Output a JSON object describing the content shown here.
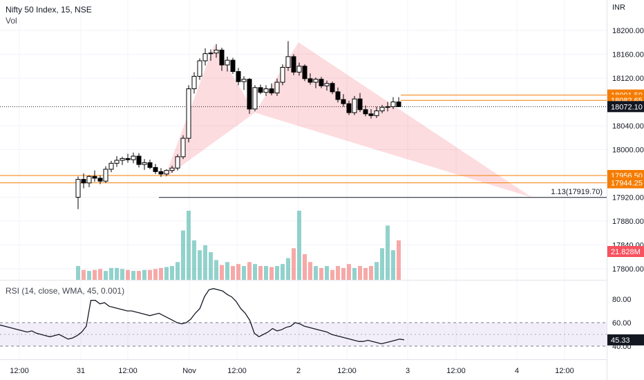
{
  "header": {
    "title": "Nifty 50 Index, 15, NSE",
    "volume_label": "Vol"
  },
  "rsi": {
    "label": "RSI (14, close, WMA, 45, 0.001)",
    "value_label": "45.33",
    "current": 45.33
  },
  "chart_data": [
    {
      "type": "candlestick",
      "title": "Nifty 50 Index, 15, NSE",
      "currency": "INR",
      "x_ticks": [
        "12:00",
        "31",
        "12:00",
        "Nov",
        "12:00",
        "2",
        "12:00",
        "3",
        "12:00",
        "4",
        "12:00"
      ],
      "y_ticks": [
        "18200.00",
        "18160.00",
        "18120.00",
        "18040.00",
        "18000.00",
        "17920.00",
        "17880.00",
        "17840.00",
        "17800.00"
      ],
      "ylim": [
        17780,
        18230
      ],
      "last_price_label": "18072.10",
      "price_lines": [
        {
          "value": 18091.5,
          "label": "18091.50"
        },
        {
          "value": 18082.65,
          "label": "18082.65"
        },
        {
          "value": 17956.5,
          "label": "17956.50"
        },
        {
          "value": 17944.25,
          "label": "17944.25"
        }
      ],
      "extension_label": "1.13(17919.70)",
      "extension_value": 17919.7,
      "volume_label": "21.828M",
      "harmonic_pattern": {
        "X": 17952,
        "A": 18176,
        "B": 18062,
        "C": 18180,
        "D": 17919.7
      },
      "candles": [
        [
          17920,
          17955,
          17900,
          17950
        ],
        [
          17950,
          17960,
          17935,
          17944
        ],
        [
          17944,
          17957,
          17937,
          17955
        ],
        [
          17955,
          17965,
          17946,
          17952
        ],
        [
          17952,
          17957,
          17942,
          17947
        ],
        [
          17947,
          17972,
          17944,
          17967
        ],
        [
          17967,
          17981,
          17962,
          17977
        ],
        [
          17977,
          17989,
          17971,
          17982
        ],
        [
          17982,
          17988,
          17974,
          17985
        ],
        [
          17985,
          17993,
          17978,
          17983
        ],
        [
          17983,
          17995,
          17977,
          17989
        ],
        [
          17989,
          17994,
          17970,
          17975
        ],
        [
          17975,
          17984,
          17966,
          17978
        ],
        [
          17978,
          17983,
          17967,
          17970
        ],
        [
          17970,
          17976,
          17959,
          17963
        ],
        [
          17963,
          17969,
          17954,
          17959
        ],
        [
          17959,
          17967,
          17956,
          17965
        ],
        [
          17965,
          17973,
          17961,
          17969
        ],
        [
          17969,
          17992,
          17965,
          17988
        ],
        [
          17988,
          18024,
          17984,
          18019
        ],
        [
          18019,
          18108,
          18012,
          18102
        ],
        [
          18102,
          18130,
          18094,
          18123
        ],
        [
          18123,
          18153,
          18117,
          18149
        ],
        [
          18149,
          18170,
          18141,
          18161
        ],
        [
          18161,
          18168,
          18149,
          18162
        ],
        [
          18162,
          18177,
          18154,
          18167
        ],
        [
          18167,
          18171,
          18132,
          18142
        ],
        [
          18142,
          18156,
          18131,
          18150
        ],
        [
          18150,
          18154,
          18127,
          18131
        ],
        [
          18131,
          18137,
          18108,
          18114
        ],
        [
          18114,
          18123,
          18100,
          18118
        ],
        [
          18118,
          18120,
          18060,
          18068
        ],
        [
          18068,
          18108,
          18064,
          18104
        ],
        [
          18104,
          18109,
          18093,
          18096
        ],
        [
          18096,
          18108,
          18090,
          18102
        ],
        [
          18102,
          18111,
          18091,
          18095
        ],
        [
          18095,
          18119,
          18090,
          18113
        ],
        [
          18113,
          18143,
          18108,
          18138
        ],
        [
          18138,
          18182,
          18132,
          18156
        ],
        [
          18156,
          18160,
          18125,
          18130
        ],
        [
          18130,
          18146,
          18124,
          18140
        ],
        [
          18140,
          18143,
          18115,
          18119
        ],
        [
          18119,
          18128,
          18109,
          18113
        ],
        [
          18113,
          18121,
          18103,
          18118
        ],
        [
          18118,
          18122,
          18103,
          18107
        ],
        [
          18107,
          18116,
          18099,
          18111
        ],
        [
          18111,
          18114,
          18093,
          18097
        ],
        [
          18097,
          18104,
          18079,
          18084
        ],
        [
          18084,
          18093,
          18072,
          18077
        ],
        [
          18077,
          18082,
          18058,
          18062
        ],
        [
          18062,
          18090,
          18058,
          18085
        ],
        [
          18085,
          18095,
          18063,
          18067
        ],
        [
          18067,
          18074,
          18056,
          18060
        ],
        [
          18060,
          18068,
          18052,
          18057
        ],
        [
          18057,
          18072,
          18053,
          18065
        ],
        [
          18065,
          18075,
          18061,
          18071
        ],
        [
          18071,
          18080,
          18064,
          18072
        ],
        [
          18072,
          18088,
          18068,
          18080
        ],
        [
          18080,
          18088,
          18072,
          18072
        ]
      ],
      "volume": [
        14,
        10,
        9,
        10,
        11,
        9,
        12,
        12,
        11,
        10,
        9,
        9,
        10,
        10,
        11,
        12,
        13,
        14,
        18,
        50,
        70,
        40,
        30,
        35,
        28,
        20,
        15,
        18,
        14,
        16,
        14,
        18,
        16,
        14,
        14,
        13,
        14,
        16,
        22,
        32,
        70,
        26,
        18,
        14,
        12,
        14,
        10,
        14,
        12,
        16,
        12,
        14,
        12,
        14,
        18,
        32,
        55,
        30,
        40
      ]
    },
    {
      "type": "line",
      "title": "RSI (14, close, WMA, 45, 0.001)",
      "y_ticks": [
        "80.00",
        "60.00",
        "40.00"
      ],
      "ylim": [
        33,
        90
      ],
      "band": [
        40,
        60
      ],
      "midline": 50,
      "values": [
        58,
        57,
        56,
        55,
        54,
        53,
        52,
        53,
        51,
        50,
        49,
        48,
        49,
        50,
        48,
        46,
        47,
        49,
        52,
        57,
        79,
        79,
        76,
        77,
        74,
        73,
        72,
        71,
        70,
        70,
        69,
        68,
        67,
        66,
        67,
        68,
        66,
        64,
        62,
        60,
        59,
        60,
        63,
        68,
        72,
        82,
        88,
        89,
        88,
        87,
        84,
        82,
        78,
        72,
        68,
        62,
        51,
        48,
        50,
        52,
        55,
        53,
        54,
        56,
        57,
        60,
        59,
        57,
        56,
        55,
        54,
        53,
        52,
        50,
        49,
        48,
        47,
        46,
        45,
        44,
        44,
        45,
        44,
        43,
        42,
        43,
        44,
        45,
        46,
        45.33
      ]
    }
  ]
}
